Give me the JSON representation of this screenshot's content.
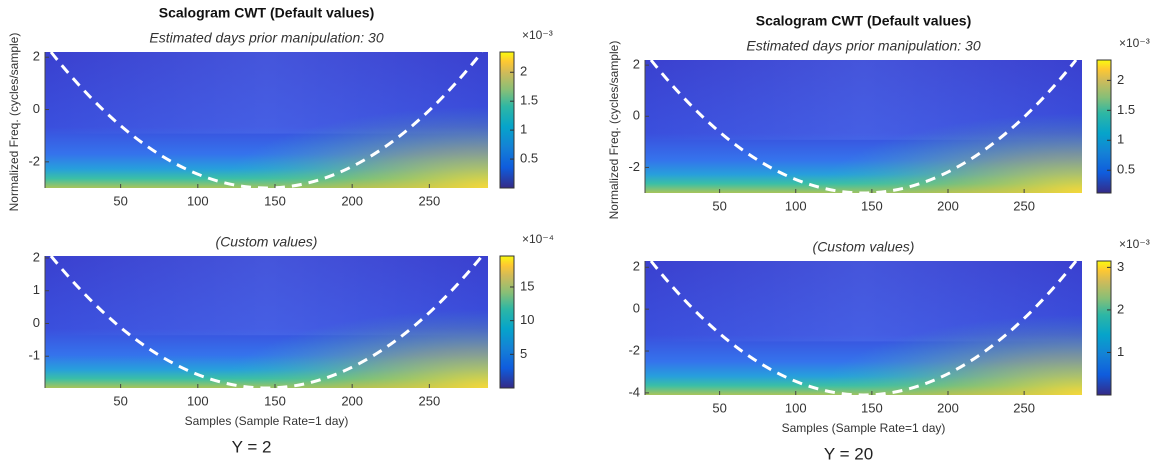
{
  "chart_data": [
    {
      "type": "scalogram",
      "title": "Scalogram CWT (Default values)",
      "subtitle": "Estimated days prior manipulation: 30",
      "y_label": "Normalized Freq. (cycles/sample)",
      "xlim": [
        1,
        288
      ],
      "xticks": [
        50,
        100,
        150,
        200,
        250
      ],
      "ylim": [
        -3,
        2.2
      ],
      "yticks": [
        -2,
        0,
        2
      ],
      "clim": [
        0,
        2.35
      ],
      "cticks": [
        0.5,
        1,
        1.5,
        2
      ],
      "c_multiplier": "×10⁻³"
    },
    {
      "type": "scalogram",
      "subtitle": "(Custom values)",
      "x_label": "Samples (Sample Rate=1 day)",
      "caption": "Y = 2",
      "xlim": [
        1,
        288
      ],
      "xticks": [
        50,
        100,
        150,
        200,
        250
      ],
      "ylim": [
        -1.97,
        2.06
      ],
      "yticks": [
        -1,
        0,
        1,
        2
      ],
      "clim": [
        0,
        19.6
      ],
      "cticks": [
        5,
        10,
        15
      ],
      "c_multiplier": "×10⁻⁴"
    },
    {
      "type": "scalogram",
      "title": "Scalogram CWT (Default values)",
      "subtitle": "Estimated days prior manipulation: 30",
      "y_label": "Normalized Freq. (cycles/sample)",
      "xlim": [
        1,
        288
      ],
      "xticks": [
        50,
        100,
        150,
        200,
        250
      ],
      "ylim": [
        -3,
        2.2
      ],
      "yticks": [
        -2,
        0,
        2
      ],
      "clim": [
        0.12,
        2.34
      ],
      "cticks": [
        0.5,
        1,
        1.5,
        2
      ],
      "c_multiplier": "×10⁻³"
    },
    {
      "type": "scalogram",
      "subtitle": "(Custom values)",
      "x_label": "Samples (Sample Rate=1 day)",
      "caption": "Y = 20",
      "xlim": [
        1,
        288
      ],
      "xticks": [
        50,
        100,
        150,
        200,
        250
      ],
      "ylim": [
        -4.1,
        2.3
      ],
      "yticks": [
        -4,
        -2,
        0,
        2
      ],
      "clim": [
        0,
        3.15
      ],
      "cticks": [
        1,
        2,
        3
      ],
      "c_multiplier": "×10⁻³"
    }
  ]
}
